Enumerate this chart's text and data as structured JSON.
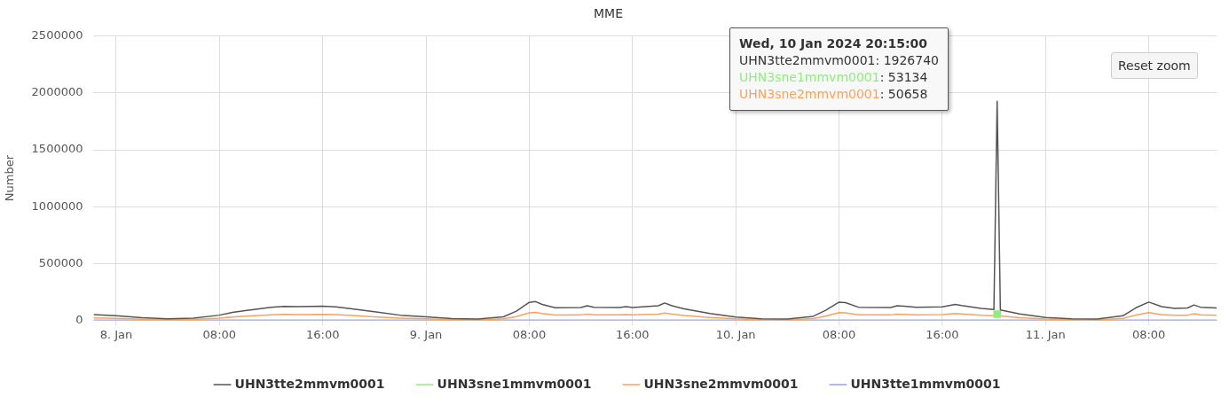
{
  "chart_data": {
    "type": "line",
    "title": "MME",
    "ylabel": "Number",
    "x": [
      "2024-01-07T22:15",
      "2024-01-08T00:00",
      "2024-01-08T02:00",
      "2024-01-08T04:00",
      "2024-01-08T06:00",
      "2024-01-08T08:00",
      "2024-01-08T09:00",
      "2024-01-08T10:00",
      "2024-01-08T12:00",
      "2024-01-08T13:00",
      "2024-01-08T14:00",
      "2024-01-08T16:00",
      "2024-01-08T17:00",
      "2024-01-08T18:00",
      "2024-01-08T20:00",
      "2024-01-08T22:00",
      "2024-01-09T00:00",
      "2024-01-09T02:00",
      "2024-01-09T04:00",
      "2024-01-09T06:00",
      "2024-01-09T07:00",
      "2024-01-09T08:00",
      "2024-01-09T08:30",
      "2024-01-09T09:00",
      "2024-01-09T10:00",
      "2024-01-09T12:00",
      "2024-01-09T12:30",
      "2024-01-09T13:00",
      "2024-01-09T15:00",
      "2024-01-09T15:30",
      "2024-01-09T16:00",
      "2024-01-09T18:00",
      "2024-01-09T18:30",
      "2024-01-09T19:00",
      "2024-01-09T20:00",
      "2024-01-09T22:00",
      "2024-01-10T00:00",
      "2024-01-10T02:00",
      "2024-01-10T04:00",
      "2024-01-10T06:00",
      "2024-01-10T07:00",
      "2024-01-10T08:00",
      "2024-01-10T08:30",
      "2024-01-10T09:30",
      "2024-01-10T12:00",
      "2024-01-10T12:30",
      "2024-01-10T14:00",
      "2024-01-10T16:00",
      "2024-01-10T17:00",
      "2024-01-10T17:30",
      "2024-01-10T19:00",
      "2024-01-10T20:00",
      "2024-01-10T20:15",
      "2024-01-10T20:30",
      "2024-01-10T22:00",
      "2024-01-11T00:00",
      "2024-01-11T02:00",
      "2024-01-11T04:00",
      "2024-01-11T06:00",
      "2024-01-11T07:00",
      "2024-01-11T08:00",
      "2024-01-11T09:00",
      "2024-01-11T10:00",
      "2024-01-11T11:00",
      "2024-01-11T11:30",
      "2024-01-11T12:00",
      "2024-01-11T13:15"
    ],
    "series": [
      {
        "name": "UHN3tte2mmvm0001",
        "color": "#555555",
        "values": [
          50000,
          40000,
          22000,
          12000,
          18000,
          45000,
          70000,
          85000,
          115000,
          122000,
          120000,
          124000,
          118000,
          105000,
          75000,
          45000,
          30000,
          14000,
          10000,
          30000,
          80000,
          158000,
          164000,
          140000,
          110000,
          112000,
          128000,
          115000,
          112000,
          120000,
          112000,
          128000,
          152000,
          130000,
          100000,
          60000,
          28000,
          12000,
          10000,
          35000,
          90000,
          160000,
          155000,
          115000,
          112000,
          128000,
          115000,
          118000,
          140000,
          130000,
          105000,
          95000,
          1926740,
          90000,
          55000,
          25000,
          12000,
          10000,
          40000,
          110000,
          160000,
          120000,
          105000,
          108000,
          135000,
          115000,
          108000
        ]
      },
      {
        "name": "UHN3sne1mmvm0001",
        "color": "#90ed7d",
        "marker": "square",
        "values": [
          null,
          null,
          null,
          null,
          null,
          null,
          null,
          null,
          null,
          null,
          null,
          null,
          null,
          null,
          null,
          null,
          null,
          null,
          null,
          null,
          null,
          null,
          null,
          null,
          null,
          null,
          null,
          null,
          null,
          null,
          null,
          null,
          null,
          null,
          null,
          null,
          null,
          null,
          null,
          null,
          null,
          null,
          null,
          null,
          null,
          null,
          null,
          null,
          null,
          null,
          null,
          null,
          53134,
          null,
          null,
          null,
          null,
          null,
          null,
          null,
          null,
          null,
          null,
          null,
          null,
          null,
          null
        ]
      },
      {
        "name": "UHN3sne2mmvm0001",
        "color": "#f7a35c",
        "values": [
          21000,
          17000,
          9000,
          5000,
          7000,
          19000,
          29000,
          36000,
          48000,
          51000,
          50000,
          52000,
          49000,
          44000,
          31000,
          19000,
          12000,
          6000,
          4000,
          12000,
          33000,
          66000,
          69000,
          59000,
          46000,
          47000,
          54000,
          48000,
          47000,
          50000,
          47000,
          54000,
          64000,
          55000,
          42000,
          25000,
          12000,
          5000,
          4000,
          15000,
          38000,
          67000,
          65000,
          48000,
          47000,
          54000,
          48000,
          50000,
          59000,
          55000,
          44000,
          40000,
          50658,
          38000,
          23000,
          10000,
          5000,
          4000,
          17000,
          46000,
          67000,
          50000,
          44000,
          45000,
          57000,
          48000,
          45000
        ]
      },
      {
        "name": "UHN3tte1mmvm0001",
        "color": "#9b9ff0",
        "values": [
          2000,
          2000,
          2000,
          2000,
          2000,
          2000,
          2000,
          2000,
          2000,
          2000,
          2000,
          2000,
          2000,
          2000,
          2000,
          2000,
          2000,
          2000,
          2000,
          2000,
          2000,
          2000,
          2000,
          2000,
          2000,
          2000,
          2000,
          2000,
          2000,
          2000,
          2000,
          2000,
          2000,
          2000,
          2000,
          2000,
          2000,
          2000,
          2000,
          2000,
          2000,
          2000,
          2000,
          2000,
          2000,
          2000,
          2000,
          2000,
          2000,
          2000,
          2000,
          2000,
          2000,
          2000,
          2000,
          2000,
          2000,
          2000,
          2000,
          2000,
          2000,
          2000,
          2000,
          2000,
          2000,
          2000,
          2000
        ]
      }
    ],
    "xlim": [
      "2024-01-07T22:15",
      "2024-01-11T13:15"
    ],
    "xticks": [
      {
        "value": "2024-01-08",
        "label": "8. Jan"
      },
      {
        "value": "2024-01-08T08:00",
        "label": "08:00"
      },
      {
        "value": "2024-01-08T16:00",
        "label": "16:00"
      },
      {
        "value": "2024-01-09",
        "label": "9. Jan"
      },
      {
        "value": "2024-01-09T08:00",
        "label": "08:00"
      },
      {
        "value": "2024-01-09T16:00",
        "label": "16:00"
      },
      {
        "value": "2024-01-10",
        "label": "10. Jan"
      },
      {
        "value": "2024-01-10T08:00",
        "label": "08:00"
      },
      {
        "value": "2024-01-10T16:00",
        "label": "16:00"
      },
      {
        "value": "2024-01-11",
        "label": "11. Jan"
      },
      {
        "value": "2024-01-11T08:00",
        "label": "08:00"
      }
    ],
    "ylim": [
      0,
      2500000
    ],
    "yticks": [
      0,
      500000,
      1000000,
      1500000,
      2000000,
      2500000
    ],
    "grid": true,
    "legend": "bottom",
    "marker": "none",
    "line_style": "solid",
    "annotations": [
      "Wed, 10 Jan 2024 20:15:00",
      "UHN3tte2mmvm0001: 1926740",
      "UHN3sne1mmvm0001: 53134",
      "UHN3sne2mmvm0001: 50658",
      "Reset zoom"
    ]
  }
}
